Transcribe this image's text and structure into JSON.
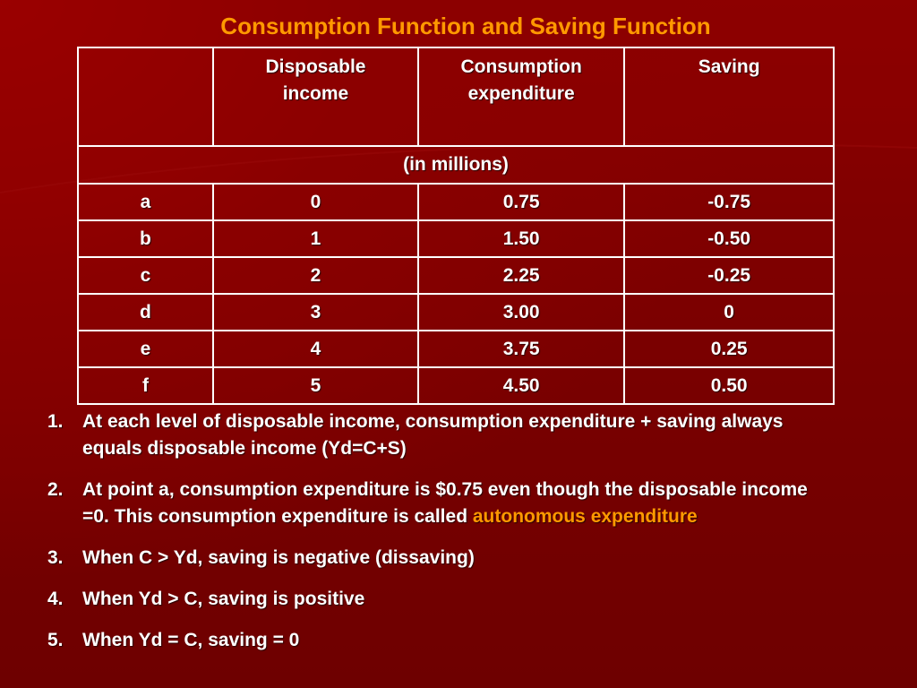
{
  "title": "Consumption Function and Saving Function",
  "table": {
    "headers": [
      "",
      "Disposable income",
      "Consumption expenditure",
      "Saving"
    ],
    "header_lines": {
      "col1": [
        "Disposable",
        "income"
      ],
      "col2": [
        "Consumption",
        "expenditure"
      ],
      "col3": [
        "Saving"
      ]
    },
    "unit_row": "(in millions)",
    "rows": [
      {
        "label": "a",
        "income": "0",
        "consumption": "0.75",
        "saving": "-0.75"
      },
      {
        "label": "b",
        "income": "1",
        "consumption": "1.50",
        "saving": "-0.50"
      },
      {
        "label": "c",
        "income": "2",
        "consumption": "2.25",
        "saving": "-0.25"
      },
      {
        "label": "d",
        "income": "3",
        "consumption": "3.00",
        "saving": "0"
      },
      {
        "label": "e",
        "income": "4",
        "consumption": "3.75",
        "saving": "0.25"
      },
      {
        "label": "f",
        "income": "5",
        "consumption": "4.50",
        "saving": "0.50"
      }
    ]
  },
  "notes": [
    {
      "number": "1.",
      "text": "At each level of disposable income, consumption expenditure + saving always equals disposable income (Yd=C+S)"
    },
    {
      "number": "2.",
      "text": "At point a, consumption expenditure is $0.75 even though the disposable income =0. This consumption expenditure is called",
      "highlight": "autonomous expenditure"
    },
    {
      "number": "3.",
      "text": "When C > Yd, saving is negative (dissaving)"
    },
    {
      "number": "4.",
      "text": "When Yd > C, saving is positive"
    },
    {
      "number": "5.",
      "text": "When Yd = C, saving = 0"
    }
  ],
  "colors": {
    "background": "#7e0000",
    "accent": "#ff9900",
    "text": "#ffffff"
  }
}
